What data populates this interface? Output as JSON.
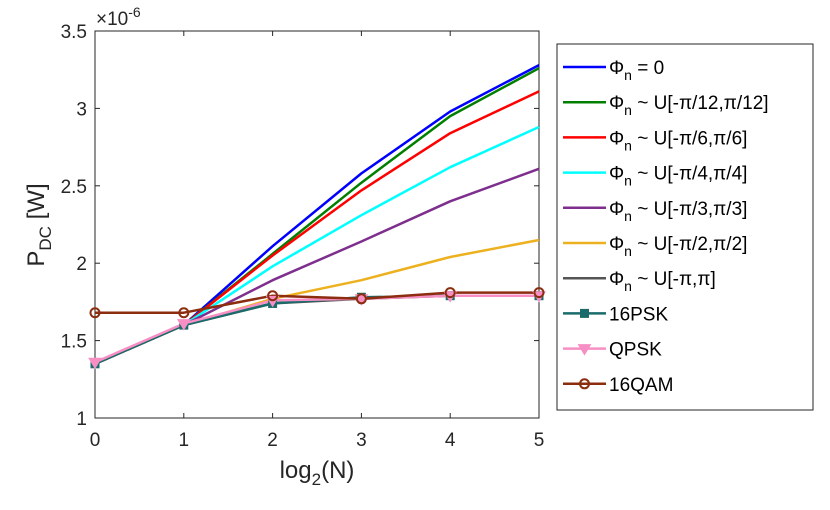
{
  "chart_data": {
    "type": "line",
    "title": "",
    "xlabel": {
      "main": "log",
      "sub": "2",
      "rest": "(N)"
    },
    "ylabel": {
      "main": "P",
      "sub": "DC",
      "rest": " [W]"
    },
    "exponent": {
      "base": "×10",
      "power": "-6"
    },
    "x": [
      0,
      1,
      2,
      3,
      4,
      5
    ],
    "xlim": [
      0,
      5
    ],
    "ylim": [
      1,
      3.5
    ],
    "xticks": [
      "0",
      "1",
      "2",
      "3",
      "4",
      "5"
    ],
    "yticks": [
      "1",
      "1.5",
      "2",
      "2.5",
      "3",
      "3.5"
    ],
    "grid": false,
    "legend_position": "outside-right",
    "series": [
      {
        "name": "Φn = 0",
        "label": {
          "sym": "Φ",
          "sub": "n",
          "rest": " = 0"
        },
        "color": "#0000ff",
        "marker": "none",
        "values": [
          1.35,
          1.6,
          2.11,
          2.58,
          2.98,
          3.28
        ]
      },
      {
        "name": "Φn ~ U[-π/12,π/12]",
        "label": {
          "sym": "Φ",
          "sub": "n",
          "rest": " ~ U[-π/12,π/12]"
        },
        "color": "#007f00",
        "marker": "none",
        "values": [
          1.35,
          1.6,
          2.06,
          2.52,
          2.95,
          3.26
        ]
      },
      {
        "name": "Φn ~ U[-π/6,π/6]",
        "label": {
          "sym": "Φ",
          "sub": "n",
          "rest": " ~ U[-π/6,π/6]"
        },
        "color": "#ff0000",
        "marker": "none",
        "values": [
          1.35,
          1.6,
          2.05,
          2.47,
          2.84,
          3.11
        ]
      },
      {
        "name": "Φn ~ U[-π/4,π/4]",
        "label": {
          "sym": "Φ",
          "sub": "n",
          "rest": " ~ U[-π/4,π/4]"
        },
        "color": "#00ffff",
        "marker": "none",
        "values": [
          1.35,
          1.6,
          1.98,
          2.31,
          2.62,
          2.88
        ]
      },
      {
        "name": "Φn ~ U[-π/3,π/3]",
        "label": {
          "sym": "Φ",
          "sub": "n",
          "rest": " ~ U[-π/3,π/3]"
        },
        "color": "#7e2f8e",
        "marker": "none",
        "values": [
          1.35,
          1.6,
          1.89,
          2.14,
          2.4,
          2.61
        ]
      },
      {
        "name": "Φn ~ U[-π/2,π/2]",
        "label": {
          "sym": "Φ",
          "sub": "n",
          "rest": " ~ U[-π/2,π/2]"
        },
        "color": "#edb120",
        "marker": "none",
        "values": [
          1.35,
          1.6,
          1.77,
          1.89,
          2.04,
          2.15
        ]
      },
      {
        "name": "Φn ~ U[-π,π]",
        "label": {
          "sym": "Φ",
          "sub": "n",
          "rest": " ~ U[-π,π]"
        },
        "color": "#555555",
        "marker": "none",
        "values": [
          1.35,
          1.6,
          1.74,
          1.77,
          1.79,
          1.79
        ]
      },
      {
        "name": "16PSK",
        "label": {
          "sym": "",
          "sub": "",
          "rest": "16PSK"
        },
        "color": "#1a6b6b",
        "marker": "square",
        "values": [
          1.35,
          1.6,
          1.74,
          1.78,
          1.79,
          1.79
        ]
      },
      {
        "name": "QPSK",
        "label": {
          "sym": "",
          "sub": "",
          "rest": "QPSK"
        },
        "color": "#f78fc4",
        "marker": "triangle-down",
        "values": [
          1.36,
          1.61,
          1.76,
          1.77,
          1.79,
          1.79
        ]
      },
      {
        "name": "16QAM",
        "label": {
          "sym": "",
          "sub": "",
          "rest": "16QAM"
        },
        "color": "#8b2d0e",
        "marker": "circle",
        "values": [
          1.68,
          1.68,
          1.79,
          1.77,
          1.81,
          1.81
        ]
      }
    ]
  }
}
